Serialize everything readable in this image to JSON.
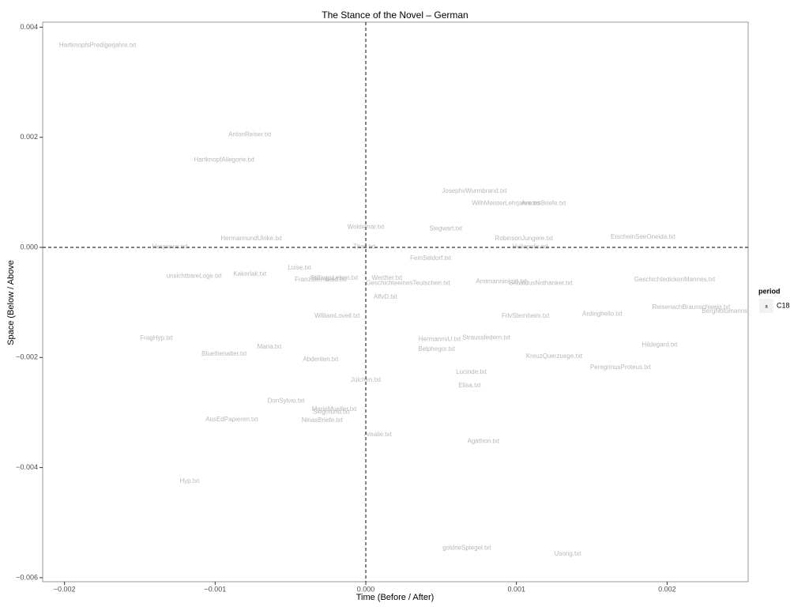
{
  "chart_data": {
    "type": "scatter",
    "title": "The Stance of the Novel – German",
    "x_label": "Time (Before / After)",
    "y_label": "Space (Below / Above",
    "xlim": [
      -0.002145,
      0.002538
    ],
    "ylim": [
      -0.006073,
      0.004092
    ],
    "xticks": [
      {
        "value": -0.002,
        "label": "−0.002"
      },
      {
        "value": -0.001,
        "label": "−0.001"
      },
      {
        "value": 0,
        "label": "0.000"
      },
      {
        "value": 0.001,
        "label": "0.001"
      },
      {
        "value": 0.002,
        "label": "0.002"
      }
    ],
    "yticks": [
      {
        "value": -0.006,
        "label": "−0.006"
      },
      {
        "value": -0.004,
        "label": "−0.004"
      },
      {
        "value": -0.002,
        "label": "−0.002"
      },
      {
        "value": 0,
        "label": "0.000"
      },
      {
        "value": 0.002,
        "label": "0.002"
      },
      {
        "value": 0.004,
        "label": "0.004"
      }
    ],
    "hline": 0,
    "vline": 0,
    "grid": false,
    "legend_title": "period",
    "legend_position": "right",
    "series": [
      {
        "name": "C18",
        "color": "#b8b8b8",
        "labels": [
          "HartknopfsPredigerjahre.txt",
          "AntonReiser.txt",
          "HartknopfAllegorie.txt",
          "JosephvWurmbrand.txt",
          "WilhMeisterLehrjahre.txt",
          "AntonsBriefe.txt",
          "Woldemar.txt",
          "Siegwart.txt",
          "HermannundUlrike.txt",
          "RobinsonJungere.txt",
          "ErscheinSeeOneida.txt",
          "Hesperus.txt",
          "Titan.txt",
          "Heliopolis.txt",
          "FemSeldorf.txt",
          "Luise.txt",
          "Kakerlak.txt",
          "unsichtbareLoge.txt",
          "FranzSternbald.txt",
          "StillingsLeben.txt",
          "Werther.txt",
          "GeschichteeinesTeutschen.txt",
          "AmtmanninLott.txt",
          "SebaldusNothanker.txt",
          "GeschichtedickenMannes.txt",
          "AlfvD.txt",
          "ReisenachBraunschweig.txt",
          "BergNotomannsDorf.txt",
          "Ardinghello.txt",
          "WilliamLovell.txt",
          "FrlvSternheim.txt",
          "FragHyp.txt",
          "HermannvU.txt",
          "Straussfedern.txt",
          "Hildegard.txt",
          "Maria.txt",
          "Belphegor.txt",
          "Bluethenalter.txt",
          "KreuzQuerzuege.txt",
          "Abderiten.txt",
          "PeregrinusProteus.txt",
          "Lucinde.txt",
          "Julchen.txt",
          "Elisa.txt",
          "DonSylvio.txt",
          "MarieMueller.txt",
          "Siegmund.txt",
          "AusEdPapieren.txt",
          "NinasBriefe.txt",
          "Amalie.txt",
          "Agathon.txt",
          "Hyp.txt",
          "goldneSpiegel.txt",
          "Usong.txt"
        ],
        "x": [
          -0.00178,
          -0.00077,
          -0.00094,
          0.00072,
          0.00093,
          0.00118,
          0.0,
          0.00053,
          -0.00076,
          0.00105,
          0.00184,
          -0.0013,
          -1e-05,
          0.00109,
          0.00043,
          -0.00044,
          -0.00077,
          -0.00114,
          -0.0003,
          -0.00021,
          0.00014,
          0.00028,
          0.0009,
          0.00116,
          0.00205,
          0.00013,
          0.00216,
          0.00245,
          0.00157,
          -0.00019,
          0.00106,
          -0.00139,
          0.00049,
          0.0008,
          0.00195,
          -0.00064,
          0.00047,
          -0.00094,
          0.00125,
          -0.0003,
          0.00169,
          0.0007,
          0.0,
          0.00069,
          -0.00053,
          -0.00021,
          -0.00023,
          -0.00089,
          -0.00029,
          8e-05,
          0.00078,
          -0.00117,
          0.00067,
          0.00134
        ],
        "y": [
          0.00367,
          0.00205,
          0.00159,
          0.00102,
          0.0008,
          0.0008,
          0.00037,
          0.00034,
          0.00016,
          0.00016,
          0.00019,
          1e-05,
          1e-05,
          1e-05,
          -0.0002,
          -0.00037,
          -0.00049,
          -0.00052,
          -0.00059,
          -0.00056,
          -0.00056,
          -0.00065,
          -0.00062,
          -0.00065,
          -0.00059,
          -0.0009,
          -0.00109,
          -0.00116,
          -0.00121,
          -0.00125,
          -0.00125,
          -0.00165,
          -0.00167,
          -0.00164,
          -0.00177,
          -0.00181,
          -0.00185,
          -0.00194,
          -0.00198,
          -0.00204,
          -0.00218,
          -0.00227,
          -0.00241,
          -0.00251,
          -0.00279,
          -0.00294,
          -0.00299,
          -0.00313,
          -0.00314,
          -0.0034,
          -0.00352,
          -0.00425,
          -0.00546,
          -0.00557
        ]
      }
    ]
  }
}
